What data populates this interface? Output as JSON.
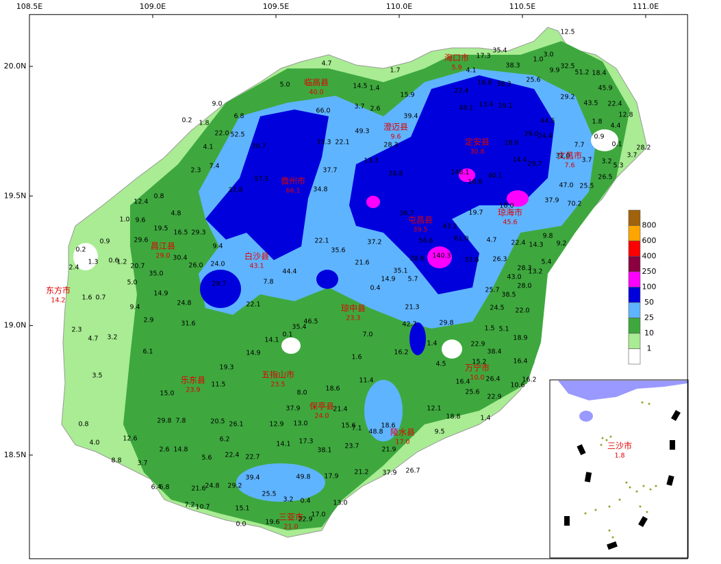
{
  "axes": {
    "xlim": [
      108.5,
      111.17
    ],
    "ylim": [
      18.1,
      20.2
    ],
    "xticks": [
      {
        "value": 108.5,
        "label": "108.5E"
      },
      {
        "value": 109.0,
        "label": "109.0E"
      },
      {
        "value": 109.5,
        "label": "109.5E"
      },
      {
        "value": 110.0,
        "label": "110.0E"
      },
      {
        "value": 110.5,
        "label": "110.5E"
      },
      {
        "value": 111.0,
        "label": "111.0E"
      }
    ],
    "yticks": [
      {
        "value": 20.0,
        "label": "20.0N"
      },
      {
        "value": 19.5,
        "label": "19.5N"
      },
      {
        "value": 19.0,
        "label": "19.0N"
      },
      {
        "value": 18.5,
        "label": "18.5N"
      }
    ]
  },
  "legend": {
    "levels": [
      800,
      600,
      400,
      250,
      100,
      50,
      25,
      10,
      1
    ],
    "colors": [
      "#a0620a",
      "#ffa500",
      "#ff0000",
      "#8b003f",
      "#ff00ff",
      "#0000dd",
      "#5fb4ff",
      "#3ea83e",
      "#a9ec93",
      "#ffffff"
    ]
  },
  "cities": [
    {
      "name": "海口市",
      "value": "5.9"
    },
    {
      "name": "临高县",
      "value": "40.0"
    },
    {
      "name": "澄迈县",
      "value": "9.6"
    },
    {
      "name": "定安县",
      "value": "30.8"
    },
    {
      "name": "文昌市",
      "value": "7.6"
    },
    {
      "name": "儋州市",
      "value": "66.1"
    },
    {
      "name": "琼海市",
      "value": "45.6"
    },
    {
      "name": "屯昌县",
      "value": "39.5"
    },
    {
      "name": "昌江县",
      "value": "29.0"
    },
    {
      "name": "白沙县",
      "value": "43.1"
    },
    {
      "name": "东方市",
      "value": "14.2"
    },
    {
      "name": "琼中县",
      "value": "23.3"
    },
    {
      "name": "万宁市",
      "value": "10.0"
    },
    {
      "name": "五指山市",
      "value": "23.5"
    },
    {
      "name": "乐东县",
      "value": "23.9"
    },
    {
      "name": "保亭县",
      "value": "24.0"
    },
    {
      "name": "陵水县",
      "value": "17.0"
    },
    {
      "name": "三亚市",
      "value": "21.0"
    },
    {
      "name": "三沙市",
      "value": "1.8"
    }
  ],
  "stations": [
    "4.7",
    "1.7",
    "5.0",
    "14.5",
    "1.4",
    "15.9",
    "9.0",
    "3.7",
    "2.6",
    "66.0",
    "39.4",
    "6.8",
    "0.2",
    "1.8",
    "22.0",
    "52.5",
    "49.3",
    "33.3",
    "22.1",
    "28.3",
    "4.1",
    "30.7",
    "13.3",
    "7.4",
    "2.3",
    "37.7",
    "28.8",
    "57.5",
    "34.8",
    "12.4",
    "0.8",
    "32.8",
    "4.8",
    "1.0",
    "9.6",
    "19.5",
    "16.5",
    "29.3",
    "29.6",
    "0.9",
    "0.2",
    "9.4",
    "22.1",
    "35.6",
    "37.2",
    "21.6",
    "1.3",
    "0.6",
    "1.2",
    "20.7",
    "30.4",
    "26.0",
    "24.0",
    "44.4",
    "35.0",
    "5.0",
    "35.1",
    "14.9",
    "5.7",
    "0.4",
    "29.7",
    "7.8",
    "2.4",
    "14.9",
    "1.6",
    "0.7",
    "9.4",
    "24.8",
    "22.1",
    "21.3",
    "2.9",
    "31.6",
    "35.4",
    "46.5",
    "2.3",
    "4.7",
    "3.2",
    "0.1",
    "14.1",
    "7.0",
    "29.8",
    "42.7",
    "1.4",
    "16.2",
    "22.9",
    "6.1",
    "14.9",
    "1.6",
    "4.5",
    "38.4",
    "15.2",
    "3.5",
    "19.3",
    "11.5",
    "11.4",
    "18.6",
    "15.0",
    "8.0",
    "16.4",
    "25.6",
    "26.4",
    "22.9",
    "10.6",
    "16.2",
    "16.4",
    "18.9",
    "12.1",
    "18.8",
    "1.4",
    "0.8",
    "29.8",
    "7.8",
    "20.5",
    "26.1",
    "37.9",
    "13.0",
    "12.9",
    "21.4",
    "15.6",
    "7.1",
    "48.8",
    "18.6",
    "9.5",
    "4.0",
    "12.6",
    "6.2",
    "14.1",
    "17.3",
    "8.8",
    "2.6",
    "14.8",
    "5.6",
    "22.4",
    "22.7",
    "38.1",
    "23.7",
    "21.9",
    "3.7",
    "21.2",
    "37.9",
    "26.7",
    "39.4",
    "49.8",
    "17.9",
    "6.4",
    "6.8",
    "21.6",
    "24.8",
    "29.2",
    "25.5",
    "3.2",
    "0.4",
    "13.0",
    "7.2",
    "10.7",
    "15.1",
    "17.0",
    "0.0",
    "22.9",
    "19.6",
    "17.3",
    "35.4",
    "12.5",
    "3.0",
    "1.0",
    "38.3",
    "9.9",
    "32.5",
    "51.2",
    "18.4",
    "4.1",
    "16.6",
    "38.3",
    "25.6",
    "45.9",
    "22.4",
    "29.2",
    "22.4",
    "13.4",
    "19.1",
    "48.1",
    "43.5",
    "12.8",
    "44.5",
    "1.8",
    "4.4",
    "29.0",
    "18.0",
    "24.4",
    "0.9",
    "0.1",
    "7.7",
    "28.2",
    "14.4",
    "29.7",
    "31.0",
    "3.7",
    "3.2",
    "5.3",
    "3.7",
    "26.5",
    "40.1",
    "47.0",
    "25.5",
    "37.9",
    "70.2",
    "19.7",
    "43.2",
    "61.0",
    "9.8",
    "4.7",
    "22.4",
    "14.3",
    "9.2",
    "26.3",
    "33.6",
    "5.4",
    "28.3",
    "13.2",
    "43.0",
    "28.0",
    "25.7",
    "38.5",
    "22.0",
    "24.5",
    "1.5",
    "5.1",
    "140.3",
    "36.7",
    "56.6",
    "148.1",
    "10.6",
    "18.0",
    "28.8"
  ]
}
